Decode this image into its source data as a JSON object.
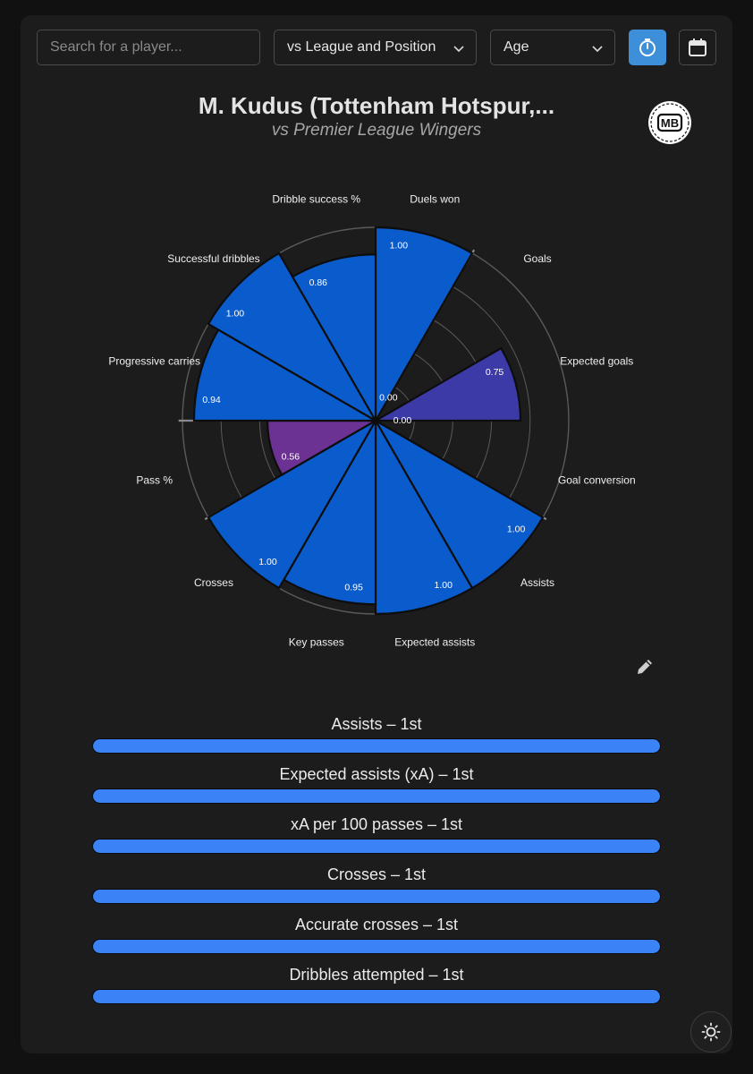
{
  "toolbar": {
    "search_placeholder": "Search for a player...",
    "comparison_select": "vs League and Position",
    "age_select": "Age",
    "timer_icon": "stopwatch-icon",
    "calendar_icon": "calendar-icon",
    "accent_color": "#3c8fd8"
  },
  "header": {
    "title": "M. Kudus (Tottenham Hotspur,...",
    "subtitle": "vs Premier League Wingers",
    "logo_text": "MB"
  },
  "chart_data": {
    "type": "polar-bar",
    "rlim": [
      0,
      1
    ],
    "categories": [
      {
        "label": "Duels won",
        "value": 1.0,
        "value_label": "1.00",
        "group": "attacking"
      },
      {
        "label": "Goals",
        "value": 0.0,
        "value_label": "0.00",
        "group": "shooting"
      },
      {
        "label": "Expected goals",
        "value": 0.75,
        "value_label": "0.75",
        "group": "shooting"
      },
      {
        "label": "Goal conversion",
        "value": 0.0,
        "value_label": "0.00",
        "group": "shooting"
      },
      {
        "label": "Assists",
        "value": 1.0,
        "value_label": "1.00",
        "group": "attacking"
      },
      {
        "label": "Expected assists",
        "value": 1.0,
        "value_label": "1.00",
        "group": "attacking"
      },
      {
        "label": "Key passes",
        "value": 0.95,
        "value_label": "0.95",
        "group": "attacking"
      },
      {
        "label": "Crosses",
        "value": 1.0,
        "value_label": "1.00",
        "group": "attacking"
      },
      {
        "label": "Pass %",
        "value": 0.56,
        "value_label": "0.56",
        "group": "passing"
      },
      {
        "label": "Progressive carries",
        "value": 0.94,
        "value_label": "0.94",
        "group": "attacking"
      },
      {
        "label": "Successful dribbles",
        "value": 1.0,
        "value_label": "1.00",
        "group": "attacking"
      },
      {
        "label": "Dribble success %",
        "value": 0.86,
        "value_label": "0.86",
        "group": "attacking"
      }
    ],
    "colors": {
      "attacking": "#0a5ccc",
      "shooting": "#3b3aa6",
      "passing": "#6b3294",
      "edge": "#0d0d0d",
      "ring": "#5a5a5c"
    }
  },
  "rankings": [
    {
      "label": "Assists – 1st",
      "percent": 100
    },
    {
      "label": "Expected assists (xA) – 1st",
      "percent": 100
    },
    {
      "label": "xA per 100 passes – 1st",
      "percent": 100
    },
    {
      "label": "Crosses – 1st",
      "percent": 100
    },
    {
      "label": "Accurate crosses – 1st",
      "percent": 100
    },
    {
      "label": "Dribbles attempted – 1st",
      "percent": 100
    }
  ],
  "footer": {
    "edit_icon": "pencil-icon",
    "theme_icon": "sun-icon"
  }
}
